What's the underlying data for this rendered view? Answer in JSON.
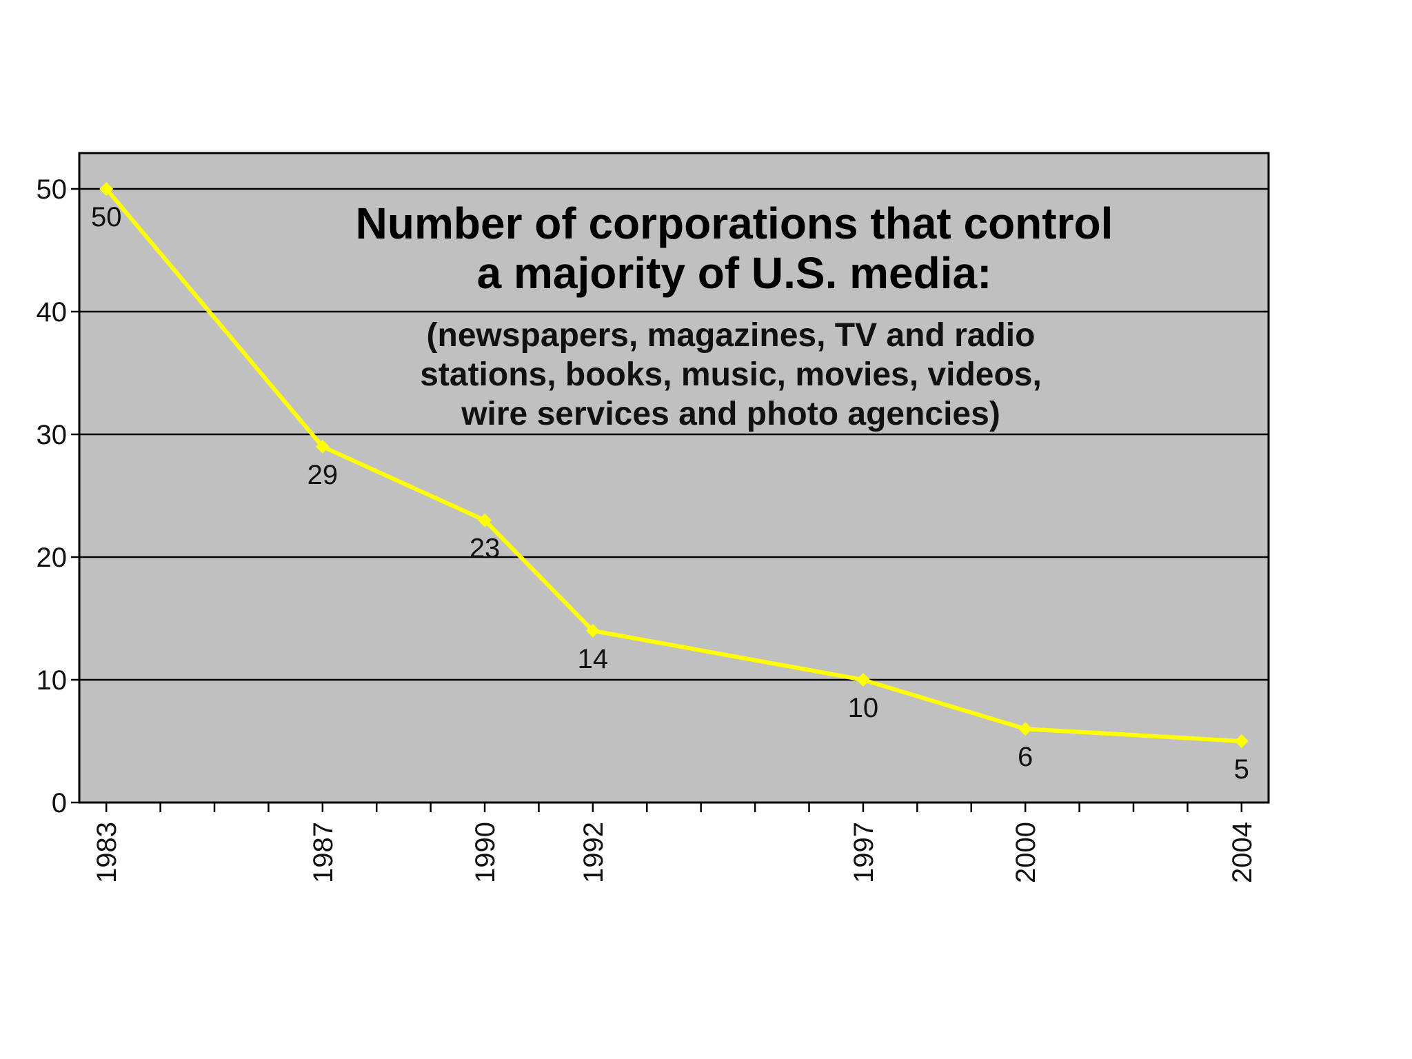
{
  "chart_data": {
    "type": "line",
    "title_lines": [
      "Number of corporations that control",
      "a majority of U.S. media:"
    ],
    "subtitle_lines": [
      "(newspapers, magazines, TV and radio",
      "stations, books, music, movies, videos,",
      "wire services and photo agencies)"
    ],
    "x": [
      1983,
      1987,
      1990,
      1992,
      1997,
      2000,
      2004
    ],
    "x_labels": [
      "1983",
      "1987",
      "1990",
      "1992",
      "1997",
      "2000",
      "2004"
    ],
    "xlim": [
      1982.5,
      2004.5
    ],
    "series": [
      {
        "values": [
          50,
          29,
          23,
          14,
          10,
          6,
          5
        ],
        "color": "#ffff00"
      }
    ],
    "ylim": [
      0,
      50
    ],
    "yticks": [
      "0",
      "10",
      "20",
      "30",
      "40",
      "50"
    ],
    "grid": "horizontal",
    "plot_background": "#c0c0c0",
    "grid_color": "#000000"
  }
}
